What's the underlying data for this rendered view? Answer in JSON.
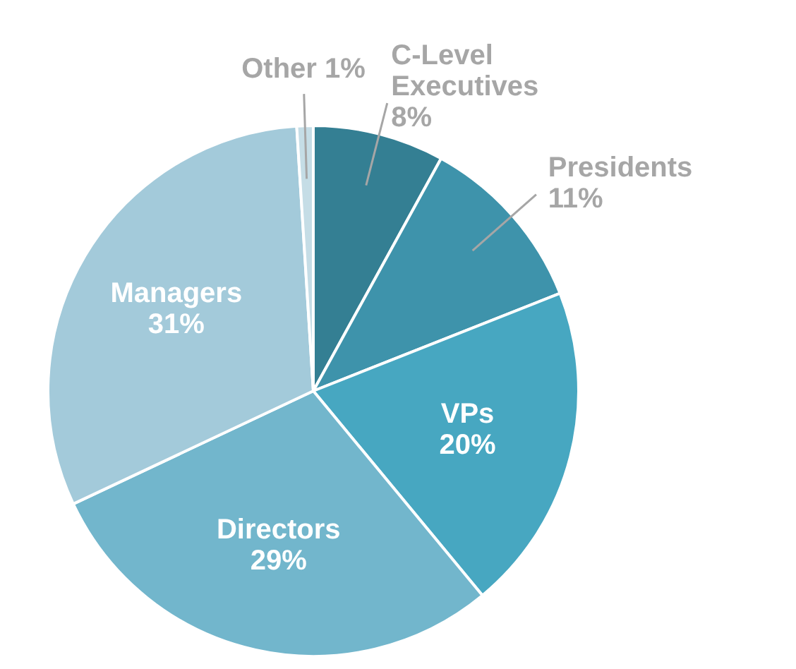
{
  "chart_data": {
    "type": "pie",
    "categories": [
      "C-Level Executives",
      "Presidents",
      "VPs",
      "Directors",
      "Managers",
      "Other"
    ],
    "values": [
      8,
      11,
      20,
      29,
      31,
      1
    ],
    "value_labels": [
      "8%",
      "11%",
      "20%",
      "29%",
      "31%",
      "1%"
    ],
    "colors": [
      "#347f93",
      "#3e93ab",
      "#47a7c1",
      "#72b6cc",
      "#a3cada",
      "#c5dde6"
    ],
    "legend": false
  }
}
